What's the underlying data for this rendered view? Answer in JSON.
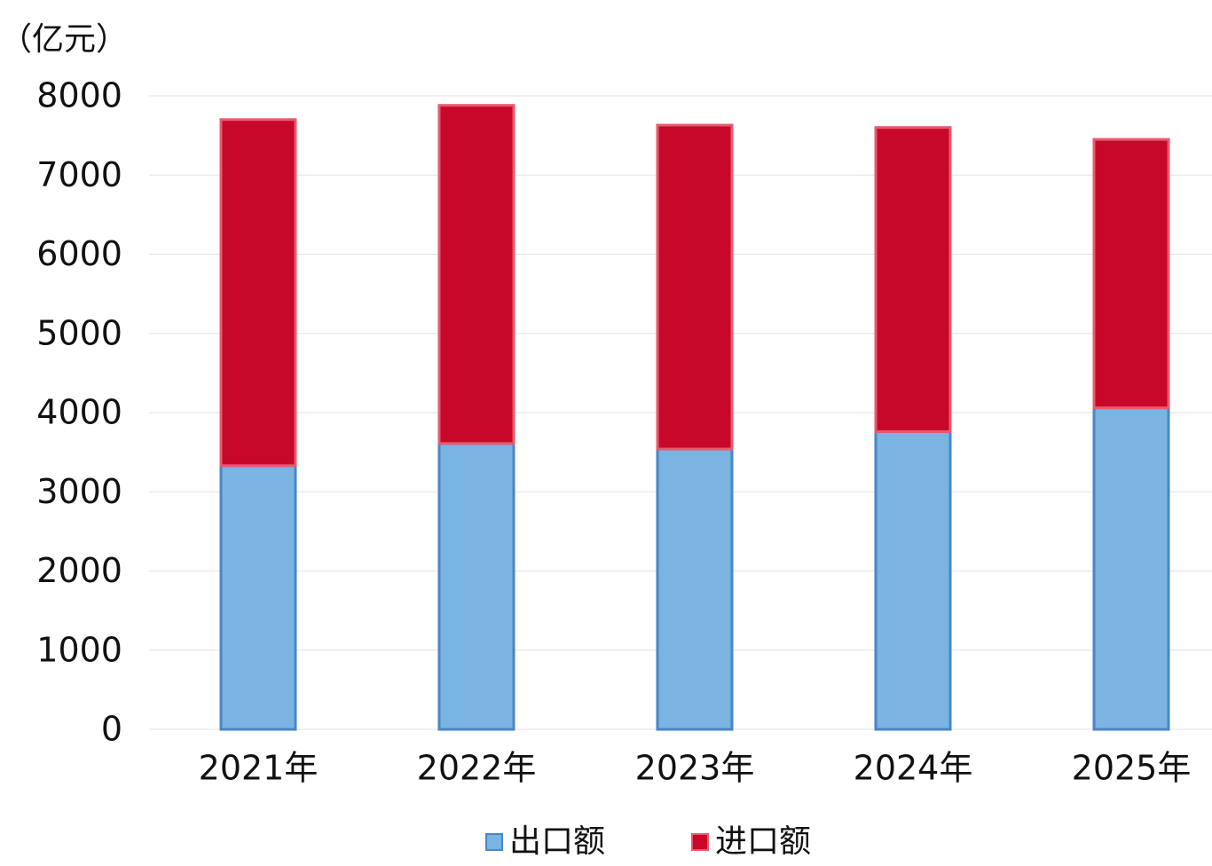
{
  "chart_data": {
    "type": "stacked_bar",
    "y_label": "（亿元）",
    "categories": [
      "2021年",
      "2022年",
      "2023年",
      "2024年",
      "2025年"
    ],
    "series": [
      {
        "name": "出口额",
        "color": "#79b4e2",
        "values": [
          3330,
          3610,
          3540,
          3760,
          4060
        ]
      },
      {
        "name": "进口额",
        "color": "#c8082a",
        "values": [
          4370,
          4270,
          4090,
          3840,
          3390
        ]
      }
    ],
    "ylim": [
      0,
      8000
    ],
    "yticks": [
      0,
      1000,
      2000,
      3000,
      4000,
      5000,
      6000,
      7000,
      8000
    ],
    "grid": true,
    "legend": "bottom"
  }
}
